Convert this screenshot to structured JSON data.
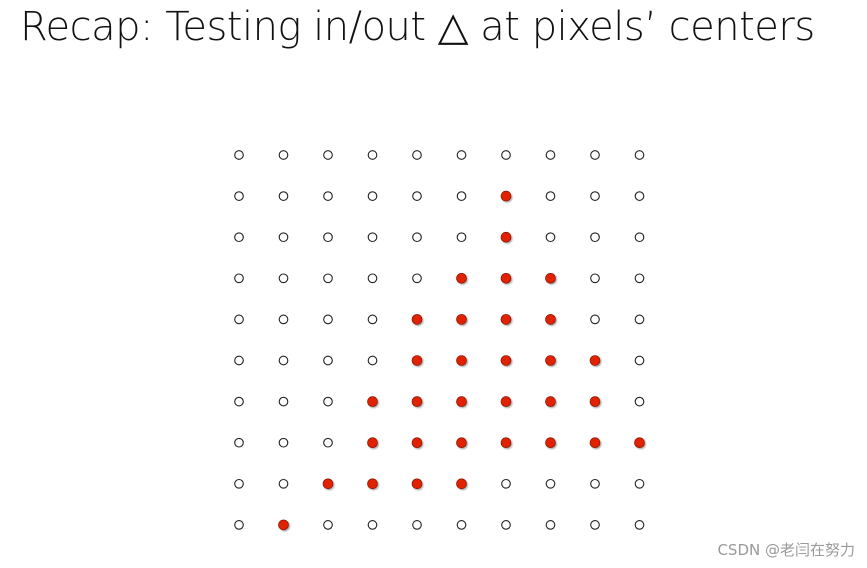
{
  "slide": {
    "title": "Recap: Testing in/out △ at pixels’ centers"
  },
  "grid": {
    "columns": 10,
    "rows": 10,
    "inside_color": "#e02000",
    "outside_color": "#ffffff",
    "inside": [
      [
        0,
        0,
        0,
        0,
        0,
        0,
        0,
        0,
        0,
        0
      ],
      [
        0,
        0,
        0,
        0,
        0,
        0,
        1,
        0,
        0,
        0
      ],
      [
        0,
        0,
        0,
        0,
        0,
        0,
        1,
        0,
        0,
        0
      ],
      [
        0,
        0,
        0,
        0,
        0,
        1,
        1,
        1,
        0,
        0
      ],
      [
        0,
        0,
        0,
        0,
        1,
        1,
        1,
        1,
        0,
        0
      ],
      [
        0,
        0,
        0,
        0,
        1,
        1,
        1,
        1,
        1,
        0
      ],
      [
        0,
        0,
        0,
        1,
        1,
        1,
        1,
        1,
        1,
        0
      ],
      [
        0,
        0,
        0,
        1,
        1,
        1,
        1,
        1,
        1,
        1
      ],
      [
        0,
        0,
        1,
        1,
        1,
        1,
        0,
        0,
        0,
        0
      ],
      [
        0,
        1,
        0,
        0,
        0,
        0,
        0,
        0,
        0,
        0
      ]
    ]
  },
  "watermark": "CSDN @老闫在努力"
}
